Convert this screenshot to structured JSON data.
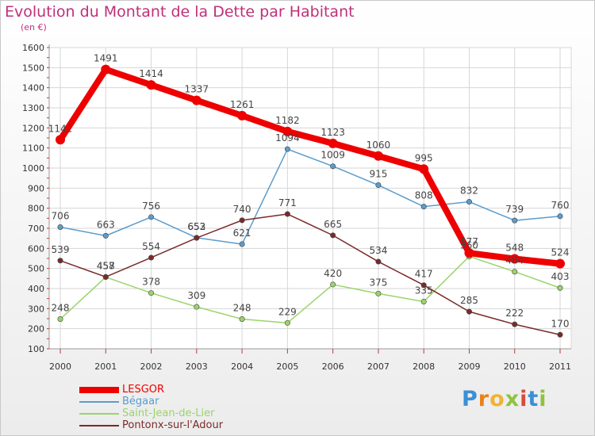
{
  "title": "Evolution du Montant de la Dette par Habitant",
  "subtitle": "(en €)",
  "logo": {
    "letters": [
      "P",
      "r",
      "o",
      "x",
      "i",
      "t",
      "i"
    ],
    "colors": [
      "#3b8fd6",
      "#e8831a",
      "#f2b233",
      "#8fc33e",
      "#d84b3b",
      "#3b8fd6",
      "#8fc33e"
    ]
  },
  "chart_data": {
    "type": "line",
    "x": [
      "2000",
      "2001",
      "2002",
      "2003",
      "2004",
      "2005",
      "2006",
      "2007",
      "2008",
      "2009",
      "2010",
      "2011"
    ],
    "ylim": [
      100,
      1600
    ],
    "yticks": [
      "100",
      "200",
      "300",
      "400",
      "500",
      "600",
      "700",
      "800",
      "900",
      "1000",
      "1100",
      "1200",
      "1300",
      "1400",
      "1500",
      "1600"
    ],
    "grid": true,
    "legend_position": "bottom-left",
    "series": [
      {
        "name": "LESGOR",
        "color": "#ee0000",
        "values": [
          1141,
          1491,
          1414,
          1337,
          1261,
          1182,
          1123,
          1060,
          995,
          577,
          548,
          524
        ],
        "labels": [
          "1141",
          "1491",
          "1414",
          "1337",
          "1261",
          "1182",
          "1123",
          "1060",
          "995",
          "577",
          "548",
          "524"
        ]
      },
      {
        "name": "Bégaar",
        "color": "#5b9ccc",
        "values": [
          706,
          663,
          756,
          653,
          621,
          1094,
          1009,
          915,
          808,
          832,
          739,
          760
        ],
        "labels": [
          "706",
          "663",
          "756",
          "653",
          "621",
          "1094",
          "1009",
          "915",
          "808",
          "832",
          "739",
          "760"
        ]
      },
      {
        "name": "Saint-Jean-de-Lier",
        "color": "#9ad46a",
        "values": [
          248,
          457,
          378,
          309,
          248,
          229,
          420,
          375,
          335,
          560,
          484,
          403
        ],
        "labels": [
          "248",
          "457",
          "378",
          "309",
          "248",
          "229",
          "420",
          "375",
          "335",
          "560",
          "484",
          "403"
        ]
      },
      {
        "name": "Pontonx-sur-l'Adour",
        "color": "#7a2a2a",
        "values": [
          539,
          458,
          554,
          652,
          740,
          771,
          665,
          534,
          417,
          285,
          222,
          170
        ],
        "labels": [
          "539",
          "458",
          "554",
          "652",
          "740",
          "771",
          "665",
          "534",
          "417",
          "285",
          "222",
          "170"
        ]
      }
    ]
  }
}
